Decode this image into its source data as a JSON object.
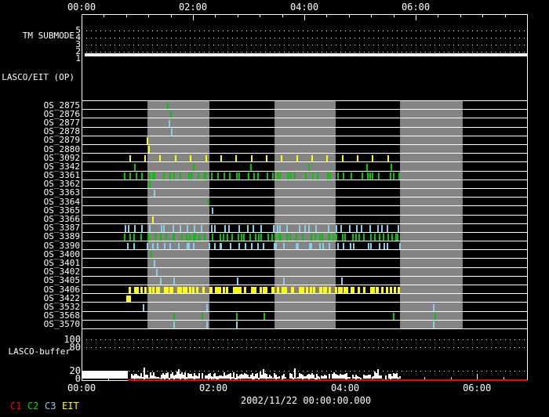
{
  "chart_data": {
    "type": "timeline",
    "date_label": "2002/11/22 00:00:00.000",
    "colors": {
      "background": "#000000",
      "frame": "#ffffff",
      "band": "#848484",
      "green": "#00c800",
      "cyan": "#87ceeb",
      "yellow": "#ffff00",
      "red": "#ff0000",
      "white": "#ffffff"
    },
    "x_axis_top": {
      "labels": [
        "00:00",
        "02:00",
        "04:00",
        "06:00"
      ],
      "label_hours": [
        0,
        2,
        4,
        6
      ],
      "range_hours": [
        0,
        8
      ],
      "minor_step_hours": 0.4
    },
    "x_axis_bottom": {
      "labels": [
        "00:00",
        "02:00",
        "04:00",
        "06:00"
      ],
      "label_hours": [
        0,
        2,
        4,
        6
      ],
      "range_hours": [
        0,
        6.76
      ],
      "minor_step_hours": 0.4
    },
    "legend": [
      {
        "label": "C1",
        "color": "#ff0000"
      },
      {
        "label": "C2",
        "color": "#00e000"
      },
      {
        "label": "C3",
        "color": "#87ceeb"
      },
      {
        "label": "EIT",
        "color": "#ffff00"
      }
    ],
    "panels": {
      "tm_submode": {
        "label": "TM SUBMODE",
        "yticks": [
          "5",
          "4",
          "3",
          "2",
          "1"
        ],
        "gridline_values": [
          "5",
          "4",
          "3",
          "2"
        ],
        "current_value": 1
      },
      "lasco_eit": {
        "label": "LASCO/EIT (OP)"
      },
      "os": {
        "gray_bands_hours": [
          [
            1.18,
            2.3
          ],
          [
            3.47,
            4.56
          ],
          [
            5.72,
            6.85
          ]
        ],
        "rows": [
          {
            "label": "OS_2875",
            "marks": [
              {
                "t": 1.55,
                "c": "green"
              }
            ]
          },
          {
            "label": "OS_2876",
            "marks": [
              {
                "t": 1.61,
                "c": "green"
              }
            ]
          },
          {
            "label": "OS_2877",
            "marks": [
              {
                "t": 1.58,
                "c": "cyan"
              }
            ]
          },
          {
            "label": "OS_2878",
            "marks": [
              {
                "t": 1.62,
                "c": "cyan"
              }
            ]
          },
          {
            "label": "OS_2879",
            "marks": [
              {
                "t": 1.18,
                "c": "yellow"
              }
            ]
          },
          {
            "label": "OS_2880",
            "marks": [
              {
                "t": 1.21,
                "c": "yellow"
              }
            ]
          },
          {
            "label": "OS_3092",
            "pattern": {
              "type": "even",
              "start": 0.87,
              "end": 5.5,
              "count": 18,
              "c": "yellow",
              "w": 2,
              "seed": 5
            }
          },
          {
            "label": "OS_3342",
            "marks": [
              {
                "t": 0.96,
                "c": "green"
              },
              {
                "t": 2.01,
                "c": "green"
              },
              {
                "t": 3.04,
                "c": "green"
              },
              {
                "t": 4.08,
                "c": "green"
              },
              {
                "t": 5.13,
                "c": "green"
              },
              {
                "t": 5.56,
                "c": "green"
              }
            ]
          },
          {
            "label": "OS_3361",
            "pattern": {
              "type": "dense",
              "start": 0.77,
              "end": 5.7,
              "count": 50,
              "c": "green",
              "w": 2,
              "seed": 11
            }
          },
          {
            "label": "OS_3362",
            "marks": [
              {
                "t": 1.23,
                "c": "green"
              }
            ]
          },
          {
            "label": "OS_3363",
            "marks": [
              {
                "t": 1.31,
                "c": "cyan"
              }
            ]
          },
          {
            "label": "OS_3364",
            "marks": [
              {
                "t": 2.28,
                "c": "green"
              }
            ]
          },
          {
            "label": "OS_3365",
            "marks": [
              {
                "t": 2.35,
                "c": "cyan"
              }
            ]
          },
          {
            "label": "OS_3366",
            "marks": [
              {
                "t": 1.28,
                "c": "yellow"
              }
            ]
          },
          {
            "label": "OS_3387",
            "pattern": {
              "type": "dense",
              "start": 0.77,
              "end": 5.7,
              "count": 42,
              "c": "cyan",
              "w": 2,
              "seed": 22
            }
          },
          {
            "label": "OS_3389",
            "pattern": {
              "type": "dense",
              "start": 0.77,
              "end": 5.7,
              "count": 65,
              "c": "green",
              "w": 2,
              "seed": 33
            }
          },
          {
            "label": "OS_3390",
            "pattern": {
              "type": "dense",
              "start": 0.77,
              "end": 5.7,
              "count": 42,
              "c": "cyan",
              "w": 2,
              "seed": 44
            }
          },
          {
            "label": "OS_3400",
            "marks": [
              {
                "t": 1.25,
                "c": "green"
              }
            ]
          },
          {
            "label": "OS_3401",
            "marks": [
              {
                "t": 1.31,
                "c": "cyan"
              }
            ]
          },
          {
            "label": "OS_3402",
            "marks": [
              {
                "t": 1.35,
                "c": "cyan"
              }
            ]
          },
          {
            "label": "OS_3405",
            "marks": [
              {
                "t": 1.42,
                "c": "cyan"
              },
              {
                "t": 1.66,
                "c": "cyan"
              },
              {
                "t": 2.8,
                "c": "cyan"
              },
              {
                "t": 3.63,
                "c": "cyan"
              },
              {
                "t": 4.68,
                "c": "cyan"
              }
            ]
          },
          {
            "label": "OS_3406",
            "pattern": {
              "type": "dense",
              "start": 0.87,
              "end": 5.72,
              "count": 80,
              "c": "yellow",
              "w": 3,
              "seed": 55
            }
          },
          {
            "label": "OS_3422",
            "marks": [
              {
                "t": 0.85,
                "c": "yellow",
                "w": 6
              }
            ]
          },
          {
            "label": "OS_3532",
            "marks": [
              {
                "t": 1.11,
                "c": "cyan"
              },
              {
                "t": 2.25,
                "c": "cyan"
              },
              {
                "t": 6.32,
                "c": "cyan"
              }
            ]
          },
          {
            "label": "OS_3568",
            "marks": [
              {
                "t": 1.66,
                "c": "green"
              },
              {
                "t": 2.17,
                "c": "green"
              },
              {
                "t": 2.79,
                "c": "green"
              },
              {
                "t": 3.28,
                "c": "green"
              },
              {
                "t": 5.6,
                "c": "green"
              },
              {
                "t": 6.35,
                "c": "green"
              }
            ]
          },
          {
            "label": "OS_3570",
            "marks": [
              {
                "t": 1.66,
                "c": "cyan"
              },
              {
                "t": 2.25,
                "c": "cyan"
              },
              {
                "t": 2.79,
                "c": "cyan"
              },
              {
                "t": 6.32,
                "c": "cyan"
              }
            ]
          }
        ]
      },
      "buffer": {
        "label": "LASCO-buffer",
        "yticks": [
          {
            "label": "100",
            "v": 100
          },
          {
            "label": "80",
            "v": 80
          },
          {
            "label": "20",
            "v": 20
          },
          {
            "label": "0",
            "v": 0
          }
        ],
        "gridline_values": [
          100,
          80,
          20
        ],
        "white_fill": {
          "start_h": 0,
          "end_h": 0.7,
          "level": 20
        },
        "noise": {
          "start_h": 0.7,
          "end_h": 4.83,
          "min_level": 3,
          "max_level": 26,
          "seed": 7
        },
        "red_line": {
          "start_h": 0.7,
          "end_h": 6.76,
          "level": 1,
          "color": "#ff0000"
        }
      }
    }
  }
}
